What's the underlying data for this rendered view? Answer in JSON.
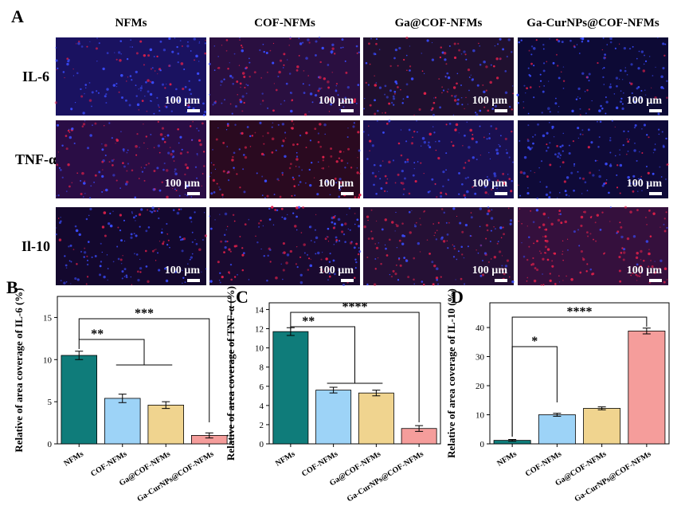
{
  "panel_a": {
    "label": "A",
    "columns": [
      "NFMs",
      "COF-NFMs",
      "Ga@COF-NFMs",
      "Ga-CurNPs@COF-NFMs"
    ],
    "rows": [
      "IL-6",
      "TNF-α",
      "Il-10"
    ],
    "scale_bar": "100 µm"
  },
  "chart_data": [
    {
      "type": "bar",
      "panel": "B",
      "y_label": "Relative of area coverage of IL-6 (%)",
      "categories": [
        "NFMs",
        "COF-NFMs",
        "Ga@COF-NFMs",
        "Ga-CurNPs@COF-NFMs"
      ],
      "values": [
        10.5,
        5.4,
        4.6,
        1.0
      ],
      "errors": [
        0.5,
        0.5,
        0.4,
        0.3
      ],
      "colors": [
        "#0f7c7a",
        "#9dd3f7",
        "#f0d48f",
        "#f59d9b"
      ],
      "ylim": [
        0,
        17.5
      ],
      "yticks": [
        0,
        5,
        10,
        15
      ],
      "annotations": [
        "**",
        "***"
      ]
    },
    {
      "type": "bar",
      "panel": "C",
      "y_label": "Relative of area coverage of TNF-α (%)",
      "categories": [
        "NFMs",
        "COF-NFMs",
        "Ga@COF-NFMs",
        "Ga-CurNPs@COF-NFMs"
      ],
      "values": [
        11.7,
        5.6,
        5.3,
        1.6
      ],
      "errors": [
        0.4,
        0.3,
        0.3,
        0.3
      ],
      "colors": [
        "#0f7c7a",
        "#9dd3f7",
        "#f0d48f",
        "#f59d9b"
      ],
      "ylim": [
        0,
        14.7
      ],
      "yticks": [
        0,
        2,
        4,
        6,
        8,
        10,
        12,
        14
      ],
      "annotations": [
        "**",
        "****"
      ]
    },
    {
      "type": "bar",
      "panel": "D",
      "y_label": "Relative of area coverage of IL-10 (%)",
      "categories": [
        "NFMs",
        "COF-NFMs",
        "Ga@COF-NFMs",
        "Ga-CurNPs@COF-NFMs"
      ],
      "values": [
        1.2,
        10.0,
        12.2,
        38.8
      ],
      "errors": [
        0.3,
        0.5,
        0.5,
        1.0
      ],
      "colors": [
        "#0f7c7a",
        "#9dd3f7",
        "#f0d48f",
        "#f59d9b"
      ],
      "ylim": [
        0,
        48.5
      ],
      "yticks": [
        0,
        10,
        20,
        30,
        40
      ],
      "annotations": [
        "*",
        "****"
      ]
    }
  ]
}
